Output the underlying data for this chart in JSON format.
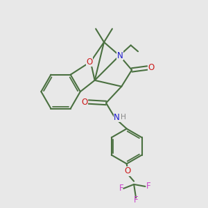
{
  "bg_color": "#e8e8e8",
  "bond_color": "#4a7040",
  "bond_width": 1.5,
  "n_color": "#1a1acc",
  "o_color": "#cc1a1a",
  "f_color": "#cc44cc",
  "h_color": "#888888",
  "label_fontsize": 8.5,
  "figsize": [
    3.0,
    3.0
  ],
  "dpi": 100,
  "xlim": [
    0,
    10
  ],
  "ylim": [
    0,
    10
  ]
}
